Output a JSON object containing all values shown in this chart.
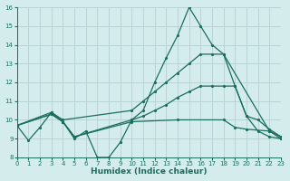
{
  "bg_color": "#d4ecec",
  "grid_color": "#b8d4d4",
  "line_color": "#1a6e5e",
  "xlabel": "Humidex (Indice chaleur)",
  "ylim": [
    8,
    16
  ],
  "xlim": [
    0,
    23
  ],
  "yticks": [
    8,
    9,
    10,
    11,
    12,
    13,
    14,
    15,
    16
  ],
  "xticks": [
    0,
    1,
    2,
    3,
    4,
    5,
    6,
    7,
    8,
    9,
    10,
    11,
    12,
    13,
    14,
    15,
    16,
    17,
    18,
    19,
    20,
    21,
    22,
    23
  ],
  "lines": [
    {
      "x": [
        0,
        1,
        2,
        3,
        4,
        5,
        6,
        7,
        8,
        9,
        10,
        11,
        12,
        13,
        14,
        15,
        16,
        17,
        18,
        19,
        20,
        21,
        22,
        23
      ],
      "y": [
        9.7,
        8.9,
        9.6,
        10.4,
        9.9,
        9.0,
        9.4,
        8.0,
        8.0,
        8.8,
        10.0,
        10.5,
        12.0,
        13.3,
        14.5,
        16.0,
        15.0,
        14.0,
        13.5,
        11.8,
        10.2,
        9.4,
        9.1,
        9.0
      ]
    },
    {
      "x": [
        0,
        3,
        4,
        10,
        11,
        12,
        13,
        14,
        15,
        16,
        17,
        18,
        22,
        23
      ],
      "y": [
        9.7,
        10.4,
        10.0,
        10.5,
        11.0,
        11.5,
        12.0,
        12.5,
        13.0,
        13.5,
        13.5,
        13.5,
        9.4,
        9.0
      ]
    },
    {
      "x": [
        0,
        3,
        4,
        5,
        10,
        11,
        12,
        13,
        14,
        15,
        16,
        17,
        18,
        19,
        20,
        21,
        22,
        23
      ],
      "y": [
        9.7,
        10.3,
        9.9,
        9.1,
        10.0,
        10.2,
        10.5,
        10.8,
        11.2,
        11.5,
        11.8,
        11.8,
        11.8,
        11.8,
        10.2,
        10.0,
        9.5,
        9.1
      ]
    },
    {
      "x": [
        0,
        3,
        4,
        5,
        10,
        14,
        18,
        19,
        20,
        22,
        23
      ],
      "y": [
        9.7,
        10.3,
        9.9,
        9.1,
        9.9,
        10.0,
        10.0,
        9.6,
        9.5,
        9.4,
        9.1
      ]
    }
  ]
}
